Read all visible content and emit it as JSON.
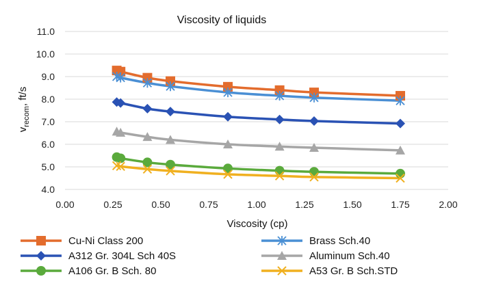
{
  "chart_data": {
    "type": "line",
    "title": "Viscosity of liquids",
    "xlabel": "Viscosity (cp)",
    "ylabel": {
      "main": "v",
      "sub": "recom",
      "suffix": ", ft/s"
    },
    "xlim": [
      0.0,
      2.0
    ],
    "ylim": [
      4.0,
      11.0
    ],
    "x_ticks": [
      "0.00",
      "0.25",
      "0.50",
      "0.75",
      "1.00",
      "1.25",
      "1.50",
      "1.75",
      "2.00"
    ],
    "y_ticks": [
      "4.0",
      "5.0",
      "6.0",
      "7.0",
      "8.0",
      "9.0",
      "10.0",
      "11.0"
    ],
    "grid": "horizontal",
    "legend_position": "bottom",
    "series": [
      {
        "name": "Cu-Ni Class 200",
        "color": "#e36c2d",
        "marker": "square",
        "x": [
          0.27,
          0.29,
          0.43,
          0.55,
          0.85,
          1.12,
          1.3,
          1.75
        ],
        "y": [
          9.27,
          9.22,
          8.95,
          8.8,
          8.55,
          8.4,
          8.3,
          8.15
        ]
      },
      {
        "name": "Brass Sch.40",
        "color": "#4a8fd4",
        "marker": "asterisk",
        "x": [
          0.27,
          0.29,
          0.43,
          0.55,
          0.85,
          1.12,
          1.3,
          1.75
        ],
        "y": [
          9.0,
          8.95,
          8.72,
          8.57,
          8.3,
          8.15,
          8.07,
          7.93
        ]
      },
      {
        "name": "A312 Gr. 304L Sch 40S",
        "color": "#2a52b4",
        "marker": "diamond",
        "x": [
          0.27,
          0.29,
          0.43,
          0.55,
          0.85,
          1.12,
          1.3,
          1.75
        ],
        "y": [
          7.87,
          7.83,
          7.58,
          7.45,
          7.22,
          7.1,
          7.03,
          6.92
        ]
      },
      {
        "name": "Aluminum Sch.40",
        "color": "#a6a6a6",
        "marker": "triangle",
        "x": [
          0.27,
          0.29,
          0.43,
          0.55,
          0.85,
          1.12,
          1.3,
          1.75
        ],
        "y": [
          6.57,
          6.52,
          6.33,
          6.2,
          6.0,
          5.9,
          5.85,
          5.73
        ]
      },
      {
        "name": "A106 Gr. B Sch. 80",
        "color": "#5aaa3c",
        "marker": "circle",
        "x": [
          0.27,
          0.29,
          0.43,
          0.55,
          0.85,
          1.12,
          1.3,
          1.75
        ],
        "y": [
          5.43,
          5.38,
          5.2,
          5.1,
          4.93,
          4.83,
          4.78,
          4.7
        ]
      },
      {
        "name": "A53 Gr. B Sch.STD",
        "color": "#f0b020",
        "marker": "x",
        "x": [
          0.27,
          0.29,
          0.43,
          0.55,
          0.85,
          1.12,
          1.3,
          1.75
        ],
        "y": [
          5.05,
          5.02,
          4.9,
          4.82,
          4.67,
          4.6,
          4.55,
          4.5
        ]
      }
    ]
  }
}
